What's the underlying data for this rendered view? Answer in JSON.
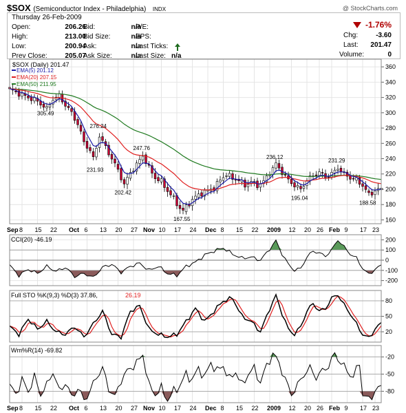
{
  "header": {
    "symbol": "$SOX",
    "name": "(Semiconductor Index - Philadelphia)",
    "exchange": "INDX",
    "copyright": "@ StockCharts.com",
    "date": "Thursday   26-Feb-2009"
  },
  "quote": {
    "open_label": "Open:",
    "open": "206.26",
    "high_label": "High:",
    "high": "213.00",
    "low_label": "Low:",
    "low": "200.94",
    "prev_label": "Prev Close:",
    "prev": "205.07",
    "bid_label": "Bid:",
    "bid": "n/a",
    "bidsize_label": "Bid Size:",
    "bidsize": "n/a",
    "ask_label": "Ask:",
    "ask": "n/a",
    "asksize_label": "Ask Size:",
    "asksize": "n/a",
    "pe_label": "P/E:",
    "eps_label": "EPS:",
    "lastticks_label": "Last Ticks:",
    "lastsize_label": "Last Size:",
    "lastsize": "n/a",
    "pct_change": "-1.76%",
    "chg_label": "Chg:",
    "chg": "-3.60",
    "last_label": "Last:",
    "last": "201.47",
    "volume_label": "Volume:",
    "volume": "0"
  },
  "colors": {
    "up": "#ffffff",
    "down": "#cc0033",
    "ema5": "#1a1aa8",
    "ema20": "#e02020",
    "ema50": "#1f7a1f",
    "fill_pos": "#5a9a5a",
    "fill_neg": "#8a5a5a",
    "sto_k": "#000000",
    "sto_d": "#e02020"
  },
  "chart_data": [
    {
      "type": "candlestick",
      "title": "$SOX (Daily) 201.47",
      "ylim": [
        155,
        370
      ],
      "ytick_labels": [
        "160",
        "180",
        "200",
        "220",
        "240",
        "260",
        "280",
        "300",
        "320",
        "340",
        "360"
      ],
      "xtick_labels": [
        "Sep",
        "8",
        "15",
        "22",
        "Oct",
        "6",
        "13",
        "20",
        "27",
        "Nov",
        "10",
        "17",
        "24",
        "Dec",
        "8",
        "15",
        "22",
        "2009",
        "12",
        "20",
        "26",
        "Feb",
        "9",
        "17",
        "23"
      ],
      "xtick_index": [
        0,
        4,
        9,
        14,
        20,
        25,
        30,
        35,
        40,
        44,
        49,
        54,
        59,
        64,
        69,
        74,
        79,
        84,
        91,
        96,
        100,
        104,
        109,
        114,
        118
      ],
      "legend": [
        {
          "label": "EMA(5) 201.12",
          "color": "#1a1aa8"
        },
        {
          "label": "EMA(20) 207.15",
          "color": "#e02020"
        },
        {
          "label": "EMA(50) 211.95",
          "color": "#1f7a1f"
        }
      ],
      "annotations": [
        {
          "i": 12,
          "value": 305.49,
          "text": "305.49"
        },
        {
          "i": 29,
          "value": 276.24,
          "text": "276.24"
        },
        {
          "i": 28,
          "value": 231.93,
          "text": "231.93"
        },
        {
          "i": 37,
          "value": 202.42,
          "text": "202.42"
        },
        {
          "i": 43,
          "value": 247.76,
          "text": "247.76"
        },
        {
          "i": 56,
          "value": 167.55,
          "text": "167.55"
        },
        {
          "i": 86,
          "value": 236.12,
          "text": "236.12"
        },
        {
          "i": 94,
          "value": 195.04,
          "text": "195.04"
        },
        {
          "i": 106,
          "value": 231.29,
          "text": "231.29"
        },
        {
          "i": 116,
          "value": 188.58,
          "text": "188.58"
        }
      ],
      "anchors": [
        [
          0,
          330
        ],
        [
          3,
          325
        ],
        [
          6,
          320
        ],
        [
          9,
          315
        ],
        [
          12,
          305
        ],
        [
          14,
          318
        ],
        [
          16,
          322
        ],
        [
          18,
          310
        ],
        [
          20,
          300
        ],
        [
          22,
          285
        ],
        [
          24,
          262
        ],
        [
          26,
          250
        ],
        [
          27,
          240
        ],
        [
          29,
          270
        ],
        [
          31,
          255
        ],
        [
          33,
          240
        ],
        [
          35,
          225
        ],
        [
          37,
          206
        ],
        [
          39,
          222
        ],
        [
          41,
          232
        ],
        [
          43,
          244
        ],
        [
          45,
          228
        ],
        [
          47,
          215
        ],
        [
          49,
          210
        ],
        [
          51,
          198
        ],
        [
          53,
          188
        ],
        [
          55,
          175
        ],
        [
          56,
          172
        ],
        [
          58,
          182
        ],
        [
          60,
          190
        ],
        [
          62,
          195
        ],
        [
          64,
          198
        ],
        [
          66,
          202
        ],
        [
          68,
          212
        ],
        [
          70,
          220
        ],
        [
          72,
          214
        ],
        [
          74,
          212
        ],
        [
          76,
          205
        ],
        [
          78,
          210
        ],
        [
          80,
          205
        ],
        [
          82,
          210
        ],
        [
          84,
          222
        ],
        [
          86,
          233
        ],
        [
          88,
          222
        ],
        [
          90,
          212
        ],
        [
          92,
          205
        ],
        [
          94,
          200
        ],
        [
          96,
          212
        ],
        [
          98,
          218
        ],
        [
          100,
          222
        ],
        [
          102,
          216
        ],
        [
          104,
          220
        ],
        [
          106,
          228
        ],
        [
          108,
          220
        ],
        [
          110,
          215
        ],
        [
          112,
          212
        ],
        [
          114,
          205
        ],
        [
          116,
          193
        ],
        [
          118,
          198
        ],
        [
          120,
          201.47
        ]
      ]
    },
    {
      "type": "line",
      "title": "CCI(20) -46.19",
      "ylim": [
        -250,
        250
      ],
      "ytick_labels": [
        "200",
        "100",
        "0",
        "-100",
        "-200"
      ],
      "levels": [
        100,
        -100
      ],
      "anchors": [
        [
          0,
          -50
        ],
        [
          3,
          -150
        ],
        [
          6,
          -90
        ],
        [
          9,
          -130
        ],
        [
          12,
          -60
        ],
        [
          15,
          -110
        ],
        [
          18,
          -70
        ],
        [
          21,
          -160
        ],
        [
          24,
          -130
        ],
        [
          27,
          -170
        ],
        [
          30,
          -70
        ],
        [
          33,
          -40
        ],
        [
          36,
          -120
        ],
        [
          39,
          -60
        ],
        [
          42,
          -30
        ],
        [
          45,
          -100
        ],
        [
          48,
          -60
        ],
        [
          51,
          -130
        ],
        [
          54,
          -150
        ],
        [
          57,
          -60
        ],
        [
          60,
          -20
        ],
        [
          63,
          50
        ],
        [
          66,
          90
        ],
        [
          69,
          120
        ],
        [
          72,
          60
        ],
        [
          75,
          20
        ],
        [
          78,
          30
        ],
        [
          81,
          0
        ],
        [
          84,
          110
        ],
        [
          86,
          190
        ],
        [
          88,
          60
        ],
        [
          90,
          -40
        ],
        [
          92,
          -100
        ],
        [
          94,
          -80
        ],
        [
          96,
          30
        ],
        [
          98,
          90
        ],
        [
          100,
          70
        ],
        [
          102,
          40
        ],
        [
          104,
          100
        ],
        [
          106,
          200
        ],
        [
          108,
          130
        ],
        [
          110,
          60
        ],
        [
          112,
          20
        ],
        [
          114,
          -80
        ],
        [
          116,
          -140
        ],
        [
          118,
          -90
        ],
        [
          120,
          -46.19
        ]
      ]
    },
    {
      "type": "line",
      "title": "Full STO %K(9,3) %D(3) 37.86, 26.19",
      "series": [
        {
          "name": "%K(9,3)"
        },
        {
          "name": "%D(3)"
        }
      ],
      "ylim": [
        0,
        100
      ],
      "ytick_labels": [
        "80",
        "50",
        "20"
      ],
      "levels": [
        80,
        50,
        20
      ],
      "k_anchors": [
        [
          0,
          30
        ],
        [
          3,
          15
        ],
        [
          6,
          45
        ],
        [
          9,
          25
        ],
        [
          12,
          40
        ],
        [
          15,
          20
        ],
        [
          18,
          15
        ],
        [
          21,
          30
        ],
        [
          24,
          10
        ],
        [
          27,
          35
        ],
        [
          30,
          60
        ],
        [
          33,
          15
        ],
        [
          36,
          10
        ],
        [
          39,
          60
        ],
        [
          42,
          70
        ],
        [
          45,
          25
        ],
        [
          48,
          15
        ],
        [
          51,
          10
        ],
        [
          54,
          15
        ],
        [
          57,
          40
        ],
        [
          60,
          65
        ],
        [
          63,
          40
        ],
        [
          66,
          60
        ],
        [
          69,
          80
        ],
        [
          72,
          85
        ],
        [
          75,
          50
        ],
        [
          78,
          40
        ],
        [
          81,
          20
        ],
        [
          84,
          65
        ],
        [
          86,
          90
        ],
        [
          88,
          55
        ],
        [
          90,
          25
        ],
        [
          92,
          15
        ],
        [
          94,
          30
        ],
        [
          96,
          60
        ],
        [
          98,
          75
        ],
        [
          100,
          60
        ],
        [
          102,
          65
        ],
        [
          104,
          85
        ],
        [
          106,
          92
        ],
        [
          108,
          72
        ],
        [
          110,
          55
        ],
        [
          112,
          35
        ],
        [
          114,
          15
        ],
        [
          116,
          8
        ],
        [
          118,
          25
        ],
        [
          120,
          37.86
        ]
      ]
    },
    {
      "type": "line",
      "title": "Wm%R(14) -69.82",
      "ylim": [
        -100,
        0
      ],
      "ytick_labels": [
        "-20",
        "-50",
        "-80"
      ],
      "levels": [
        -20,
        -50,
        -80
      ],
      "anchors": [
        [
          0,
          -70
        ],
        [
          2,
          -85
        ],
        [
          4,
          -60
        ],
        [
          6,
          -80
        ],
        [
          8,
          -55
        ],
        [
          10,
          -85
        ],
        [
          12,
          -70
        ],
        [
          14,
          -45
        ],
        [
          16,
          -80
        ],
        [
          18,
          -65
        ],
        [
          20,
          -90
        ],
        [
          22,
          -75
        ],
        [
          24,
          -95
        ],
        [
          26,
          -80
        ],
        [
          28,
          -55
        ],
        [
          30,
          -40
        ],
        [
          32,
          -75
        ],
        [
          34,
          -90
        ],
        [
          36,
          -60
        ],
        [
          38,
          -45
        ],
        [
          40,
          -35
        ],
        [
          42,
          -25
        ],
        [
          43,
          -15
        ],
        [
          45,
          -70
        ],
        [
          47,
          -85
        ],
        [
          49,
          -75
        ],
        [
          51,
          -95
        ],
        [
          53,
          -80
        ],
        [
          55,
          -70
        ],
        [
          57,
          -50
        ],
        [
          59,
          -60
        ],
        [
          61,
          -40
        ],
        [
          63,
          -55
        ],
        [
          65,
          -30
        ],
        [
          67,
          -45
        ],
        [
          69,
          -35
        ],
        [
          71,
          -60
        ],
        [
          73,
          -45
        ],
        [
          75,
          -70
        ],
        [
          77,
          -50
        ],
        [
          79,
          -40
        ],
        [
          81,
          -65
        ],
        [
          83,
          -35
        ],
        [
          85,
          -15
        ],
        [
          87,
          -30
        ],
        [
          89,
          -60
        ],
        [
          91,
          -85
        ],
        [
          93,
          -70
        ],
        [
          95,
          -50
        ],
        [
          97,
          -40
        ],
        [
          99,
          -55
        ],
        [
          101,
          -45
        ],
        [
          103,
          -35
        ],
        [
          105,
          -15
        ],
        [
          107,
          -30
        ],
        [
          109,
          -45
        ],
        [
          111,
          -55
        ],
        [
          113,
          -30
        ],
        [
          114,
          -85
        ],
        [
          116,
          -95
        ],
        [
          118,
          -80
        ],
        [
          120,
          -69.82
        ]
      ]
    }
  ]
}
